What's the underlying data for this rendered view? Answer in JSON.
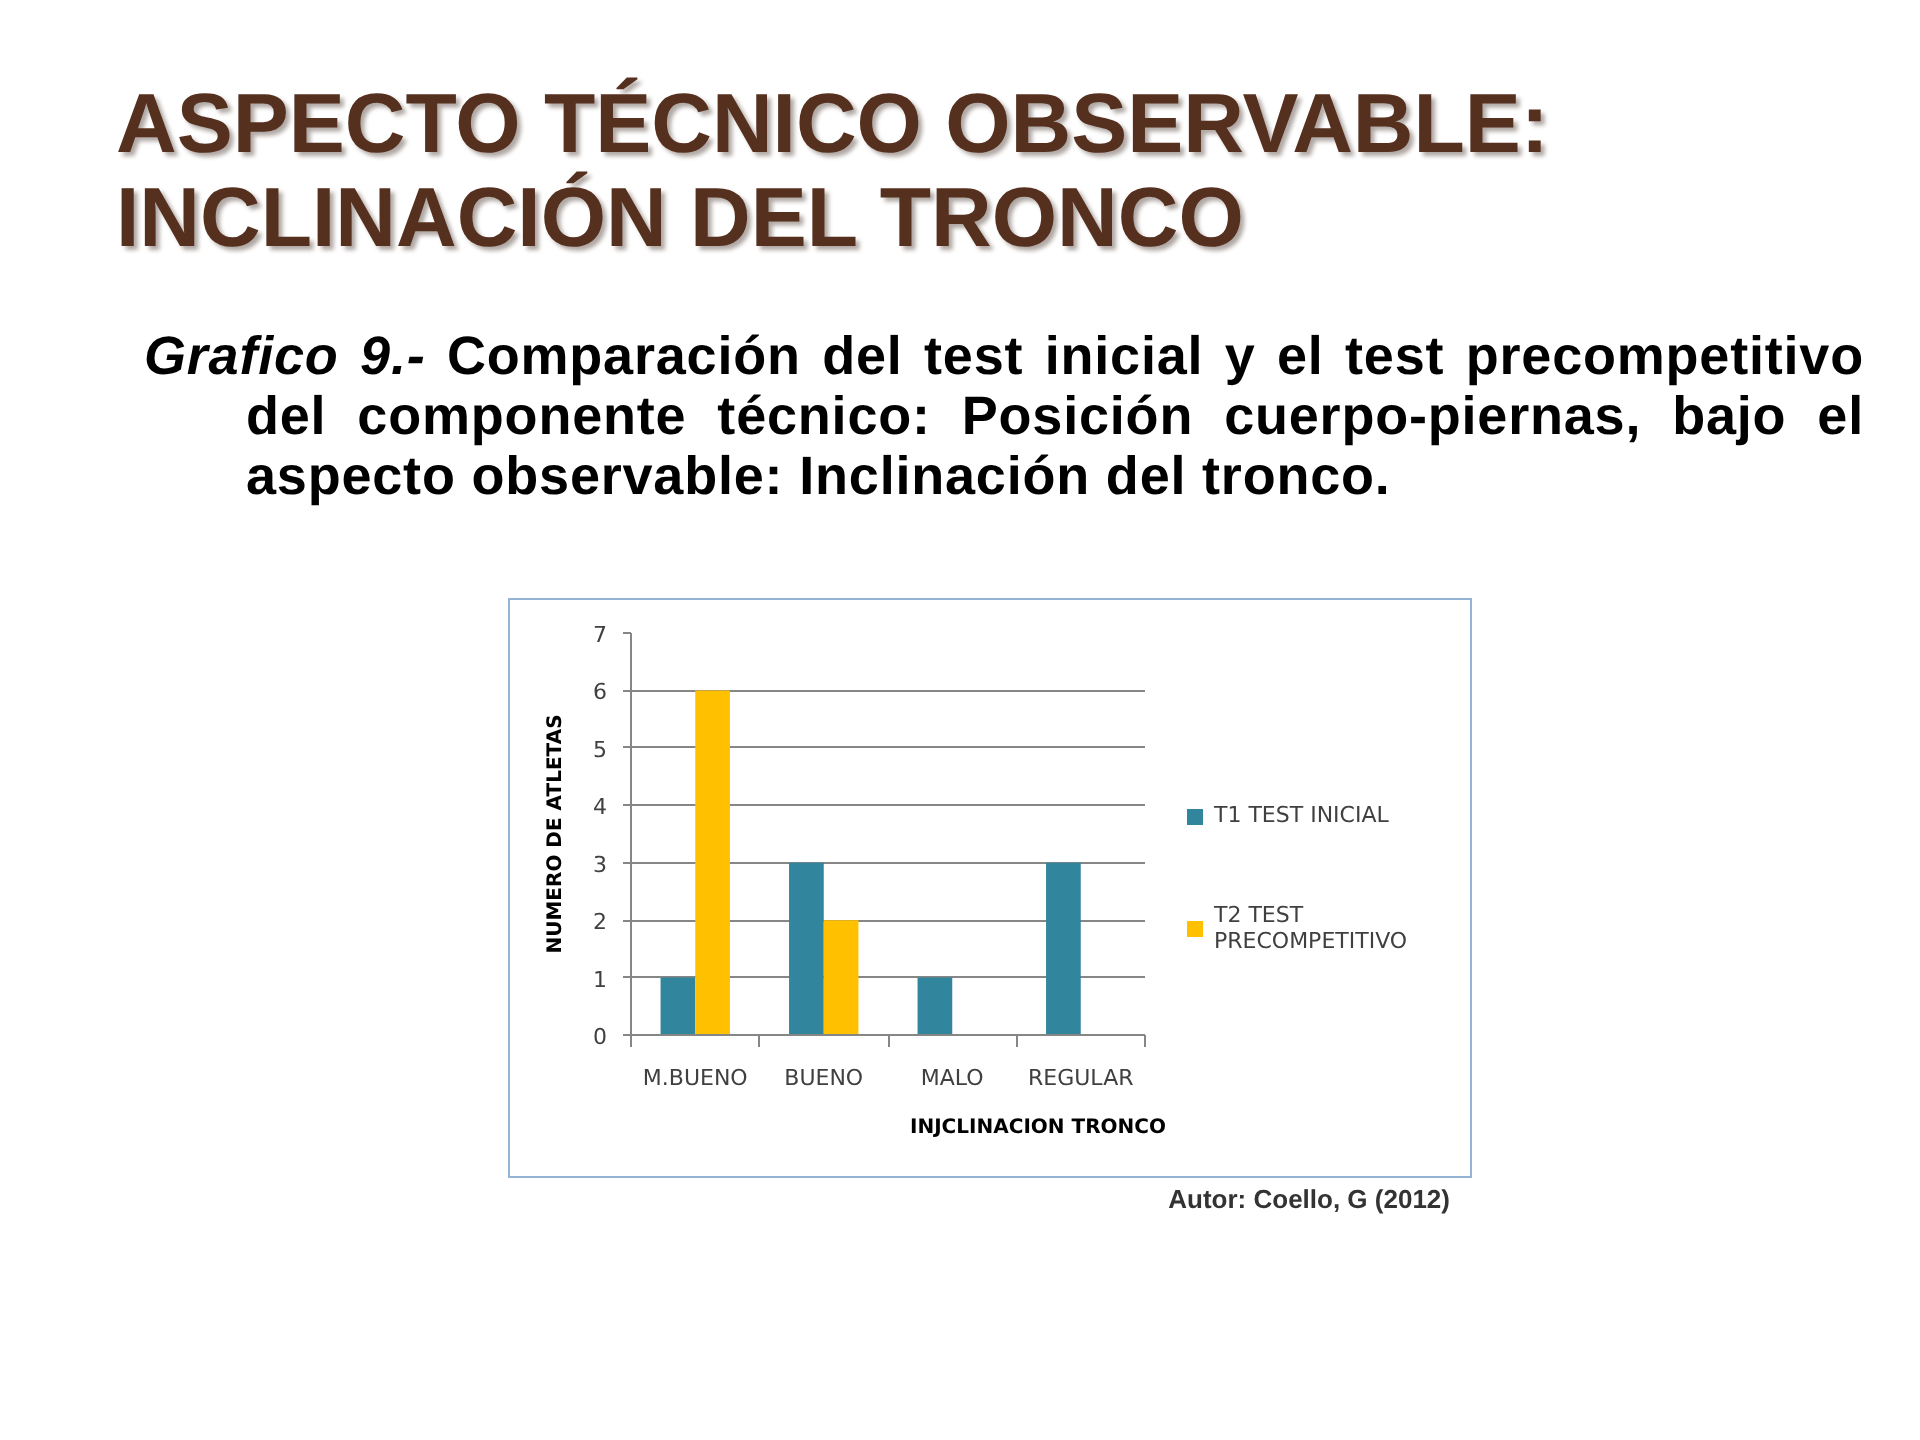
{
  "chart_data": {
    "type": "bar",
    "title": "ASPECTO TÉCNICO OBSERVABLE: INCLINACIÓN DEL TRONCO",
    "subtitle": "Grafico 9.- Comparación del test inicial y el test precompetitivo del componente técnico: Posición cuerpo-piernas, bajo el aspecto observable: Inclinación del tronco.",
    "xlabel": "INJCLINACION TRONCO",
    "ylabel": "NUMERO DE ATLETAS",
    "annotations": [
      "Autor: Coello, G (2012)"
    ],
    "categories": [
      "M.BUENO",
      "BUENO",
      "MALO",
      "REGULAR"
    ],
    "series": [
      {
        "name": "T1 TEST INICIAL",
        "color": "#31859c",
        "values": [
          1,
          3,
          1,
          3
        ]
      },
      {
        "name": "T2 TEST PRECOMPETITIVO",
        "color": "#ffc000",
        "values": [
          6,
          2,
          null,
          null
        ]
      }
    ],
    "ylim": [
      0,
      7
    ],
    "yticks": [
      0,
      1,
      2,
      3,
      4,
      5,
      6,
      7
    ],
    "grid": "y",
    "legend": "right"
  }
}
